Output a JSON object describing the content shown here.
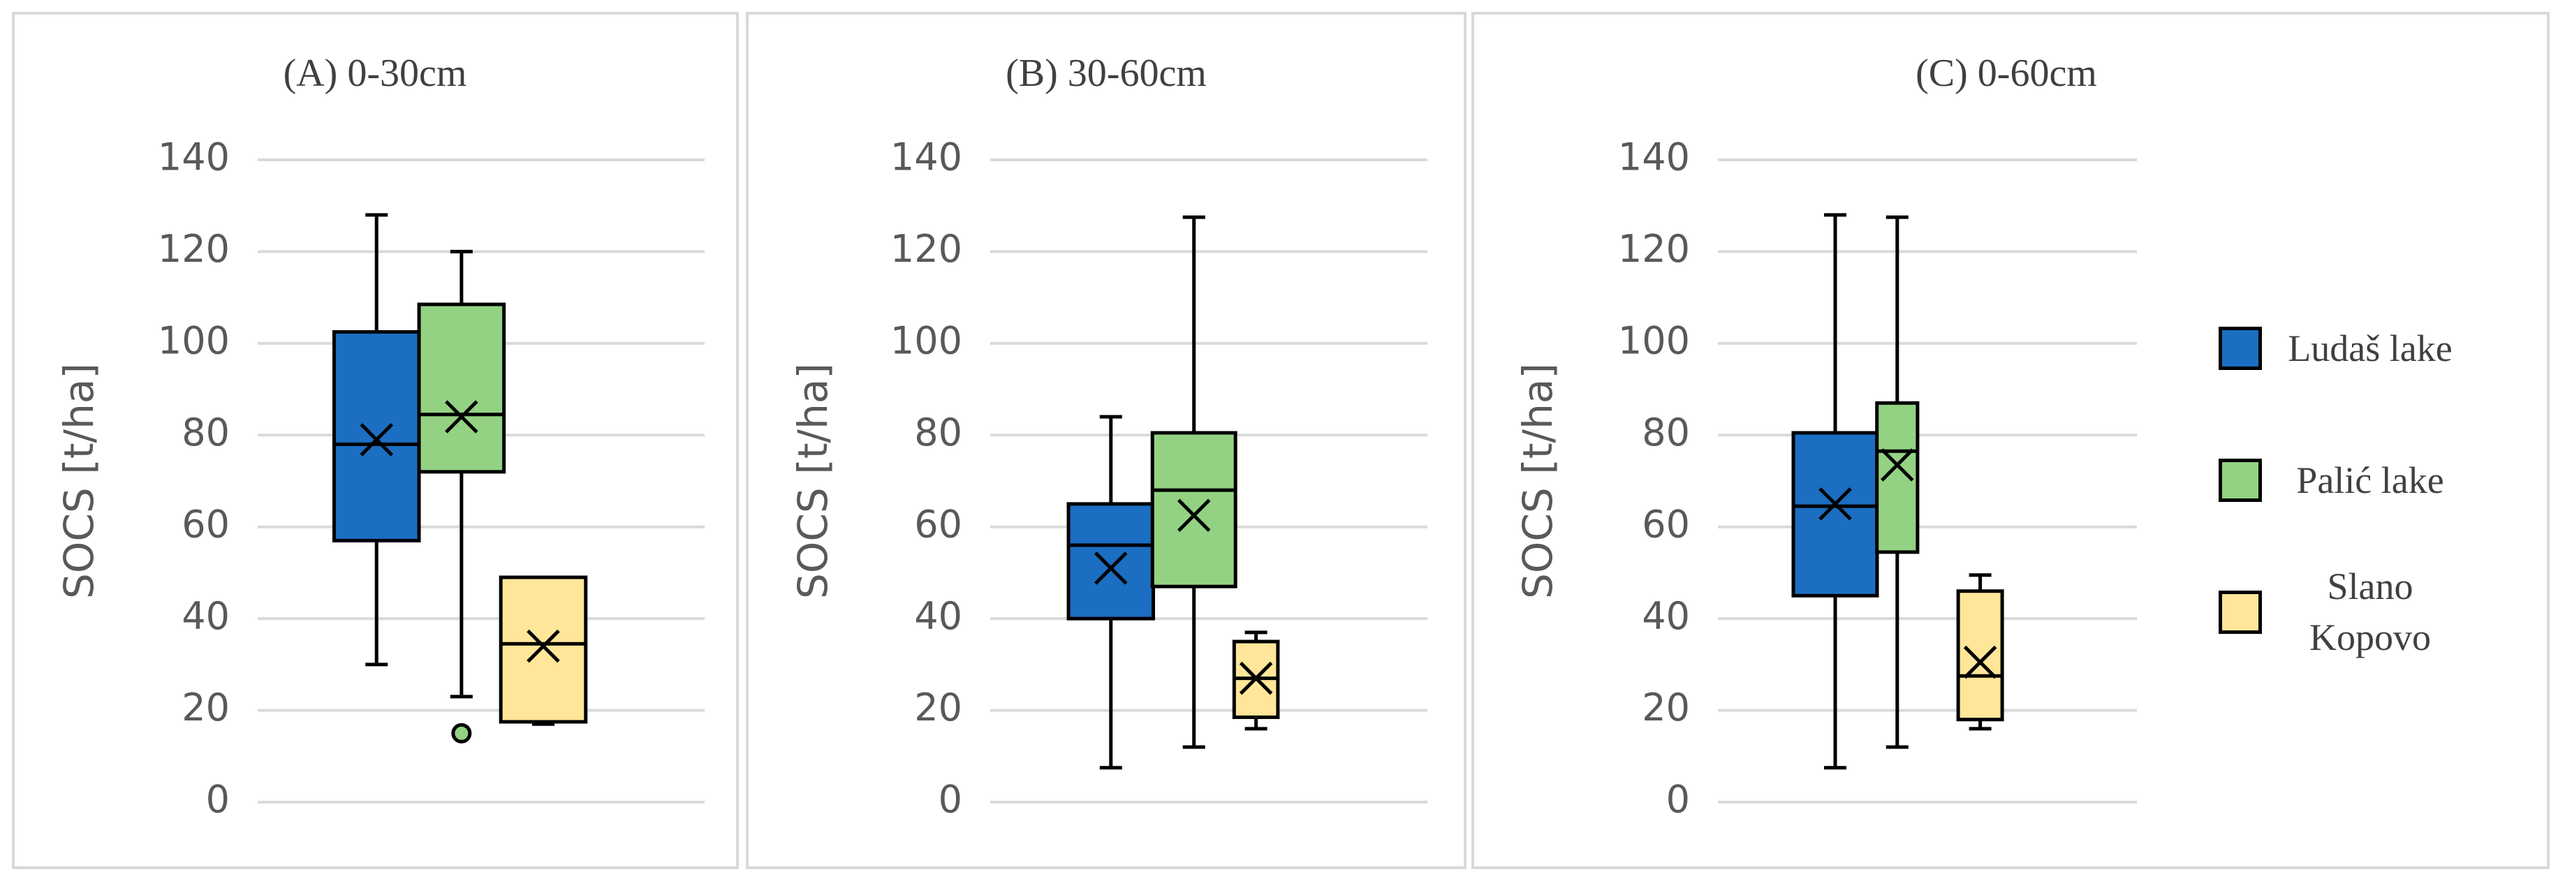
{
  "legend": [
    {
      "name": "Ludaš lake",
      "color": "#1b6ec2"
    },
    {
      "name": "Palić lake",
      "color": "#93d283"
    },
    {
      "name": "Slano Kopovo",
      "color": "#ffe699"
    }
  ],
  "chart_data": [
    {
      "type": "box",
      "title": "(A) 0-30cm",
      "y_label": "SOCS [t/ha]",
      "ylim": [
        0,
        140
      ],
      "yticks": [
        0,
        20,
        40,
        60,
        80,
        100,
        120,
        140
      ],
      "grid": true,
      "series": [
        {
          "whisker_low": 30,
          "q1": 57,
          "median": 78,
          "q3": 102.5,
          "whisker_high": 128,
          "mean": 79
        },
        {
          "whisker_low": 23,
          "q1": 72,
          "median": 84.5,
          "q3": 108.5,
          "whisker_high": 120,
          "mean": 84,
          "outliers": [
            15
          ]
        },
        {
          "whisker_low": 17,
          "q1": 17.5,
          "median": 34.5,
          "q3": 49,
          "whisker_high": 49,
          "mean": 34
        }
      ]
    },
    {
      "type": "box",
      "title": "(B) 30-60cm",
      "y_label": "SOCS [t/ha]",
      "ylim": [
        0,
        140
      ],
      "yticks": [
        0,
        20,
        40,
        60,
        80,
        100,
        120,
        140
      ],
      "grid": true,
      "series": [
        {
          "whisker_low": 7.5,
          "q1": 40,
          "median": 56,
          "q3": 65,
          "whisker_high": 84,
          "mean": 51
        },
        {
          "whisker_low": 12,
          "q1": 47,
          "median": 68,
          "q3": 80.5,
          "whisker_high": 127.5,
          "mean": 62.5
        },
        {
          "whisker_low": 16,
          "q1": 18.5,
          "median": 27,
          "q3": 35,
          "whisker_high": 37,
          "mean": 27
        }
      ]
    },
    {
      "type": "box",
      "title": "(C) 0-60cm",
      "y_label": "SOCS [t/ha]",
      "ylim": [
        0,
        140
      ],
      "yticks": [
        0,
        20,
        40,
        60,
        80,
        100,
        120,
        140
      ],
      "grid": true,
      "series": [
        {
          "whisker_low": 7.5,
          "q1": 45,
          "median": 64.5,
          "q3": 80.5,
          "whisker_high": 128,
          "mean": 65
        },
        {
          "whisker_low": 12,
          "q1": 54.5,
          "median": 76.5,
          "q3": 87,
          "whisker_high": 127.5,
          "mean": 73.5
        },
        {
          "whisker_low": 16,
          "q1": 18,
          "median": 27.5,
          "q3": 46,
          "whisker_high": 49.5,
          "mean": 30.5
        }
      ]
    }
  ]
}
